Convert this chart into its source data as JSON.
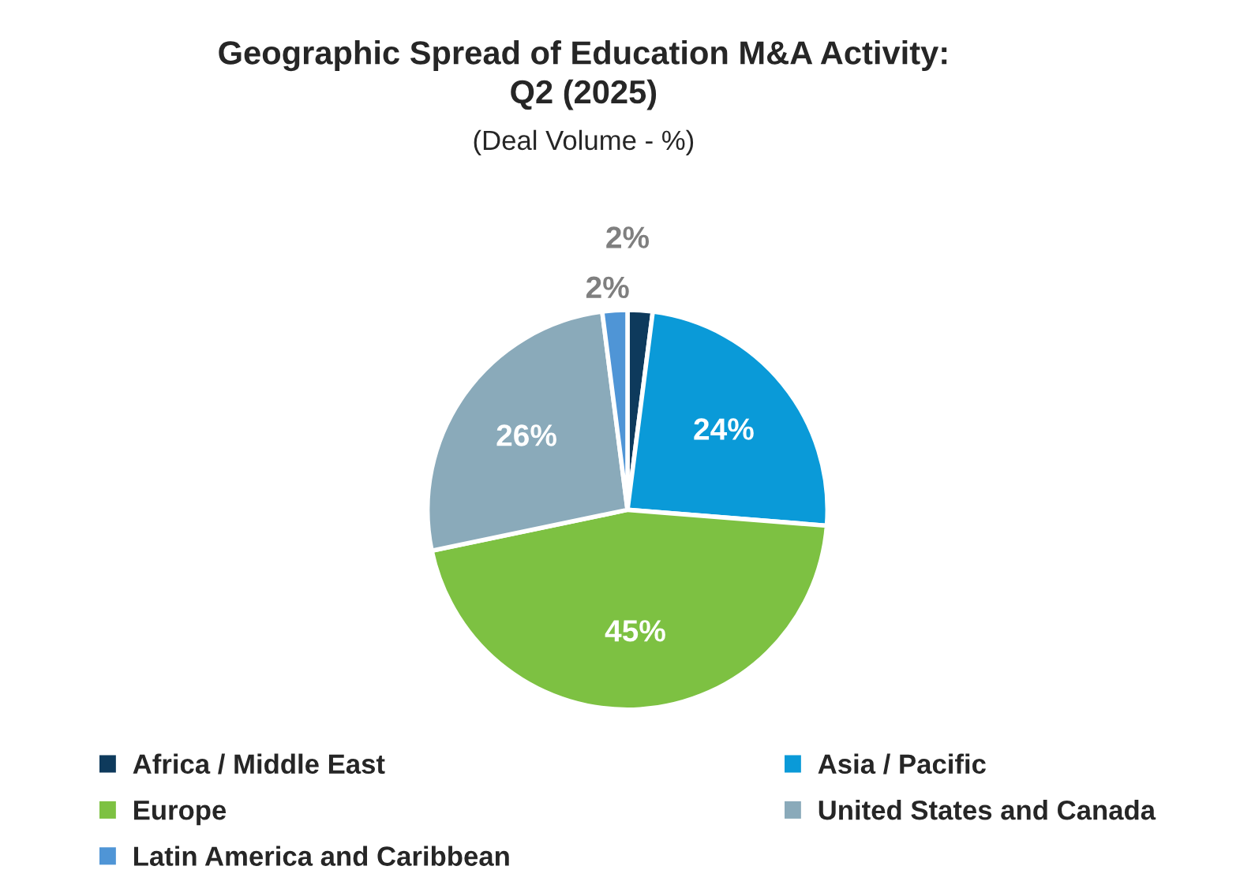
{
  "chart_data": {
    "type": "pie",
    "title": "Geographic Spread of Education M&A Activity:\nQ2 (2025)",
    "subtitle": "(Deal Volume - %)",
    "categories": [
      "Africa / Middle East",
      "Asia / Pacific",
      "Europe",
      "United States and Canada",
      "Latin America and Caribbean"
    ],
    "values": [
      2,
      24,
      45,
      26,
      2
    ],
    "colors": [
      "#0e3a5c",
      "#0a9ad8",
      "#7dc142",
      "#8aaaba",
      "#4f95d6"
    ],
    "value_labels": [
      "2%",
      "24%",
      "45%",
      "26%",
      "2%"
    ],
    "legend": "bottom"
  }
}
